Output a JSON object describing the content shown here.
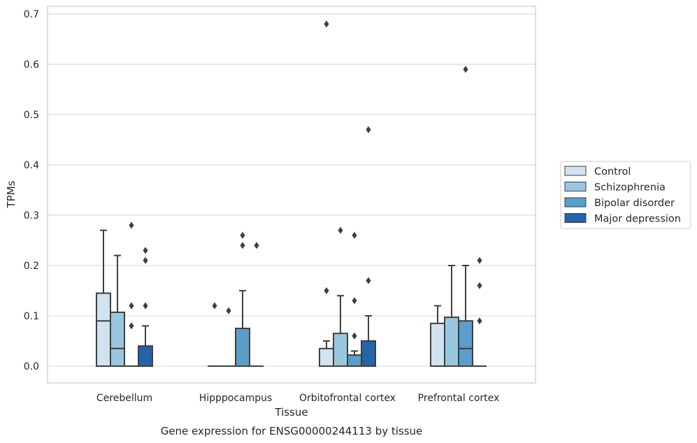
{
  "chart_data": {
    "type": "box",
    "title": "",
    "caption": "Gene expression for ENSG00000244113 by tissue",
    "xlabel": "Tissue",
    "ylabel": "TPMs",
    "ylim": [
      -0.033,
      0.715
    ],
    "yticks": [
      0.0,
      0.1,
      0.2,
      0.3,
      0.4,
      0.5,
      0.6,
      0.7
    ],
    "ytick_labels": [
      "0.0",
      "0.1",
      "0.2",
      "0.3",
      "0.4",
      "0.5",
      "0.6",
      "0.7"
    ],
    "grid": "horizontal",
    "legend_position": "right",
    "categories": [
      "Cerebellum",
      "Hipppocampus",
      "Orbitofrontal cortex",
      "Prefrontal cortex"
    ],
    "series": [
      {
        "name": "Control",
        "color": "#d1e2f1",
        "boxes": [
          {
            "whislo": 0.0,
            "q1": 0.0,
            "med": 0.09,
            "q3": 0.145,
            "whishi": 0.27,
            "fliers": []
          },
          {
            "whislo": 0.0,
            "q1": 0.0,
            "med": 0.0,
            "q3": 0.0,
            "whishi": 0.0,
            "fliers": [
              0.12
            ]
          },
          {
            "whislo": 0.0,
            "q1": 0.0,
            "med": 0.0,
            "q3": 0.035,
            "whishi": 0.05,
            "fliers": [
              0.15,
              0.68
            ]
          },
          {
            "whislo": 0.0,
            "q1": 0.0,
            "med": 0.0,
            "q3": 0.085,
            "whishi": 0.12,
            "fliers": []
          }
        ]
      },
      {
        "name": "Schizophrenia",
        "color": "#9ac7e0",
        "boxes": [
          {
            "whislo": 0.0,
            "q1": 0.0,
            "med": 0.035,
            "q3": 0.107,
            "whishi": 0.22,
            "fliers": []
          },
          {
            "whislo": 0.0,
            "q1": 0.0,
            "med": 0.0,
            "q3": 0.0,
            "whishi": 0.0,
            "fliers": [
              0.11
            ]
          },
          {
            "whislo": 0.0,
            "q1": 0.0,
            "med": 0.0,
            "q3": 0.065,
            "whishi": 0.14,
            "fliers": [
              0.27
            ]
          },
          {
            "whislo": 0.0,
            "q1": 0.0,
            "med": 0.0,
            "q3": 0.097,
            "whishi": 0.2,
            "fliers": []
          }
        ]
      },
      {
        "name": "Bipolar disorder",
        "color": "#5a9ec9",
        "boxes": [
          {
            "whislo": 0.0,
            "q1": 0.0,
            "med": 0.0,
            "q3": 0.0,
            "whishi": 0.0,
            "fliers": [
              0.08,
              0.12,
              0.28
            ]
          },
          {
            "whislo": 0.0,
            "q1": 0.0,
            "med": 0.0,
            "q3": 0.075,
            "whishi": 0.15,
            "fliers": [
              0.24,
              0.26
            ]
          },
          {
            "whislo": 0.0,
            "q1": 0.0,
            "med": 0.0,
            "q3": 0.022,
            "whishi": 0.03,
            "fliers": [
              0.06,
              0.13,
              0.26
            ]
          },
          {
            "whislo": 0.0,
            "q1": 0.0,
            "med": 0.035,
            "q3": 0.09,
            "whishi": 0.2,
            "fliers": [
              0.59
            ]
          }
        ]
      },
      {
        "name": "Major depression",
        "color": "#2464a8",
        "boxes": [
          {
            "whislo": 0.0,
            "q1": 0.0,
            "med": 0.0,
            "q3": 0.04,
            "whishi": 0.08,
            "fliers": [
              0.12,
              0.21,
              0.23
            ]
          },
          {
            "whislo": 0.0,
            "q1": 0.0,
            "med": 0.0,
            "q3": 0.0,
            "whishi": 0.0,
            "fliers": [
              0.24
            ]
          },
          {
            "whislo": 0.0,
            "q1": 0.0,
            "med": 0.0,
            "q3": 0.05,
            "whishi": 0.1,
            "fliers": [
              0.17,
              0.47
            ]
          },
          {
            "whislo": 0.0,
            "q1": 0.0,
            "med": 0.0,
            "q3": 0.0,
            "whishi": 0.0,
            "fliers": [
              0.09,
              0.16,
              0.21
            ]
          }
        ]
      }
    ]
  }
}
